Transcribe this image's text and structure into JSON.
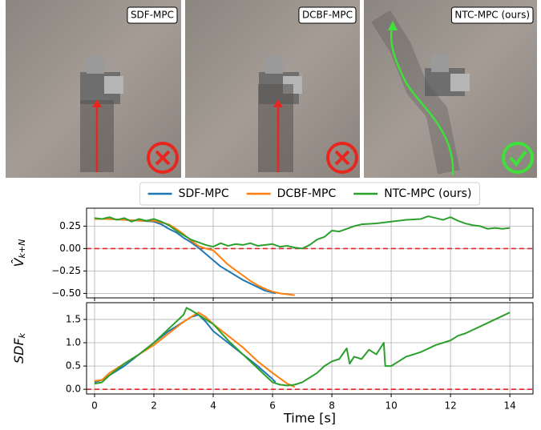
{
  "panels": [
    {
      "label": "SDF-MPC"
    },
    {
      "label": "DCBF-MPC"
    },
    {
      "label": "NTC-MPC (ours)"
    }
  ],
  "chart_data": [
    {
      "type": "line",
      "ylabel": "V̂",
      "ylabel_subscript": "k+N",
      "xlim": [
        -0.27,
        14.78
      ],
      "xticks": [
        0,
        2,
        4,
        6,
        8,
        10,
        12,
        14
      ],
      "ylim": [
        -0.55,
        0.45
      ],
      "yticks": [
        {
          "value": 0.25,
          "label": "0.25"
        },
        {
          "value": 0,
          "label": "0.00"
        },
        {
          "value": -0.25,
          "label": "−0.25"
        },
        {
          "value": -0.5,
          "label": "−0.50"
        }
      ],
      "grid": true,
      "reference_line": {
        "value": 0,
        "color": "#e4262b"
      },
      "series": [
        {
          "name": "SDF-MPC",
          "color": "#1f77b4",
          "x": [
            0,
            0.5,
            1,
            1.5,
            2,
            2.25,
            2.5,
            2.75,
            3,
            3.25,
            3.5,
            3.75,
            4,
            4.25,
            4.5,
            4.75,
            5,
            5.25,
            5.5,
            5.75,
            6,
            6.1
          ],
          "values": [
            0.33,
            0.33,
            0.32,
            0.31,
            0.3,
            0.27,
            0.22,
            0.18,
            0.12,
            0.07,
            0.01,
            -0.06,
            -0.13,
            -0.2,
            -0.25,
            -0.3,
            -0.35,
            -0.39,
            -0.43,
            -0.47,
            -0.49,
            -0.5
          ]
        },
        {
          "name": "DCBF-MPC",
          "color": "#ff7f0e",
          "x": [
            0,
            0.5,
            1,
            1.5,
            2,
            2.5,
            2.75,
            3,
            3.25,
            3.5,
            3.75,
            4,
            4.25,
            4.5,
            4.75,
            5,
            5.25,
            5.5,
            5.75,
            6,
            6.25,
            6.5,
            6.75
          ],
          "values": [
            0.33,
            0.33,
            0.32,
            0.31,
            0.31,
            0.27,
            0.22,
            0.16,
            0.09,
            0.03,
            0.0,
            -0.02,
            -0.1,
            -0.18,
            -0.24,
            -0.3,
            -0.36,
            -0.41,
            -0.45,
            -0.48,
            -0.5,
            -0.51,
            -0.52
          ]
        },
        {
          "name": "NTC-MPC (ours)",
          "color": "#2ca02c",
          "x": [
            0,
            0.25,
            0.5,
            0.75,
            1,
            1.25,
            1.5,
            1.75,
            2,
            2.25,
            2.5,
            2.75,
            3,
            3.25,
            3.5,
            3.75,
            4,
            4.25,
            4.5,
            4.75,
            5,
            5.25,
            5.5,
            5.75,
            6,
            6.25,
            6.5,
            6.75,
            7,
            7.25,
            7.5,
            7.75,
            8,
            8.25,
            8.5,
            8.75,
            9,
            9.5,
            10,
            10.5,
            11,
            11.25,
            11.5,
            11.75,
            12,
            12.25,
            12.5,
            12.75,
            13,
            13.25,
            13.5,
            13.75,
            14
          ],
          "values": [
            0.34,
            0.33,
            0.35,
            0.32,
            0.34,
            0.3,
            0.33,
            0.31,
            0.33,
            0.3,
            0.26,
            0.2,
            0.15,
            0.1,
            0.07,
            0.04,
            0.02,
            0.06,
            0.03,
            0.05,
            0.04,
            0.06,
            0.03,
            0.04,
            0.05,
            0.02,
            0.03,
            0.01,
            0.0,
            0.04,
            0.1,
            0.13,
            0.2,
            0.19,
            0.22,
            0.25,
            0.27,
            0.28,
            0.3,
            0.32,
            0.33,
            0.36,
            0.34,
            0.32,
            0.35,
            0.31,
            0.28,
            0.26,
            0.25,
            0.22,
            0.23,
            0.22,
            0.23
          ]
        }
      ]
    },
    {
      "type": "line",
      "ylabel": "SDF",
      "ylabel_subscript": "k",
      "xlabel": "Time [s]",
      "xlim": [
        -0.27,
        14.78
      ],
      "xticks": [
        0,
        2,
        4,
        6,
        8,
        10,
        12,
        14
      ],
      "ylim": [
        -0.1,
        1.86
      ],
      "yticks": [
        {
          "value": 0,
          "label": "0.0"
        },
        {
          "value": 0.5,
          "label": "0.5"
        },
        {
          "value": 1,
          "label": "1.0"
        },
        {
          "value": 1.5,
          "label": "1.5"
        }
      ],
      "grid": true,
      "reference_line": {
        "value": 0,
        "color": "#e4262b"
      },
      "series": [
        {
          "color": "#1f77b4",
          "x": [
            0,
            0.25,
            0.5,
            1,
            1.5,
            2,
            2.5,
            3,
            3.25,
            3.5,
            3.75,
            4,
            4.5,
            5,
            5.5,
            6,
            6.1
          ],
          "values": [
            0.15,
            0.2,
            0.3,
            0.5,
            0.75,
            1.0,
            1.25,
            1.45,
            1.55,
            1.6,
            1.45,
            1.25,
            1.0,
            0.75,
            0.5,
            0.22,
            0.15
          ]
        },
        {
          "color": "#ff7f0e",
          "x": [
            0,
            0.25,
            0.5,
            1,
            1.5,
            2,
            2.5,
            3,
            3.25,
            3.5,
            3.75,
            4,
            4.5,
            5,
            5.5,
            6,
            6.5,
            6.75
          ],
          "values": [
            0.18,
            0.2,
            0.35,
            0.55,
            0.75,
            0.95,
            1.2,
            1.45,
            1.55,
            1.65,
            1.55,
            1.4,
            1.15,
            0.9,
            0.6,
            0.35,
            0.12,
            0.05
          ]
        },
        {
          "color": "#2ca02c",
          "x": [
            0,
            0.25,
            0.5,
            1,
            1.5,
            2,
            2.5,
            3,
            3.1,
            3.25,
            3.5,
            4,
            4.5,
            5,
            5.5,
            5.75,
            6,
            6.25,
            6.5,
            6.75,
            7,
            7.25,
            7.5,
            7.75,
            8,
            8.25,
            8.5,
            8.6,
            8.75,
            9,
            9.25,
            9.5,
            9.75,
            9.8,
            10,
            10.25,
            10.5,
            11,
            11.5,
            12,
            12.25,
            12.5,
            13,
            13.5,
            14
          ],
          "values": [
            0.12,
            0.15,
            0.3,
            0.55,
            0.75,
            1.0,
            1.3,
            1.6,
            1.75,
            1.7,
            1.6,
            1.4,
            1.05,
            0.75,
            0.45,
            0.3,
            0.15,
            0.1,
            0.08,
            0.1,
            0.15,
            0.25,
            0.35,
            0.5,
            0.6,
            0.65,
            0.88,
            0.55,
            0.7,
            0.65,
            0.85,
            0.75,
            1.0,
            0.5,
            0.5,
            0.6,
            0.7,
            0.8,
            0.95,
            1.05,
            1.15,
            1.2,
            1.35,
            1.5,
            1.65
          ]
        }
      ]
    }
  ]
}
